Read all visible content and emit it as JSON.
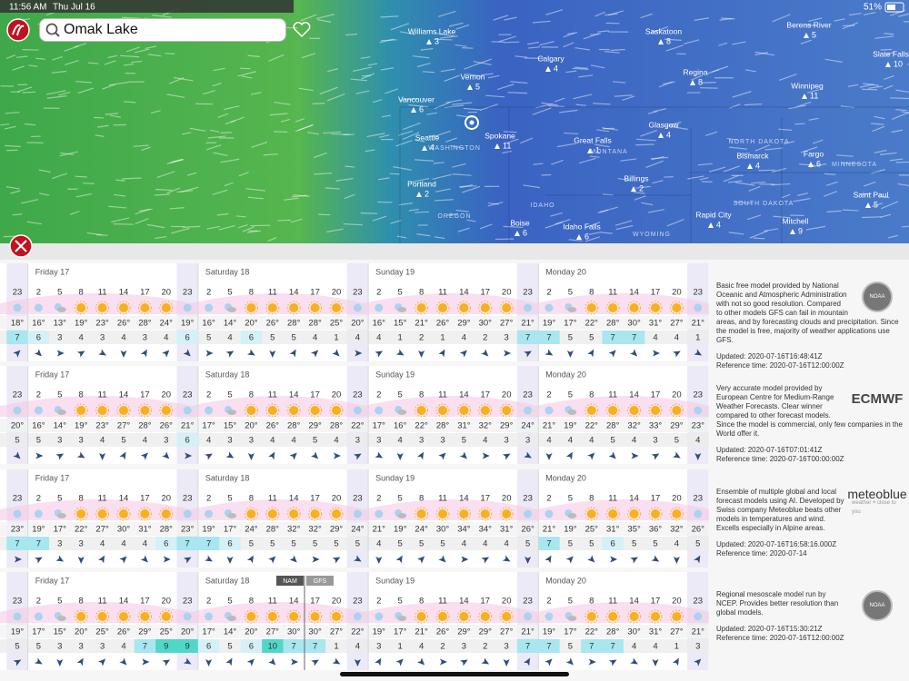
{
  "status": {
    "time": "11:56 AM",
    "date": "Thu Jul 16",
    "battery": "51%"
  },
  "search": {
    "query": "Omak Lake"
  },
  "map": {
    "cities": [
      {
        "name": "Williams Lake",
        "wind": 3
      },
      {
        "name": "Saskatoon",
        "wind": 8
      },
      {
        "name": "Berens River",
        "wind": 5
      },
      {
        "name": "Slate Falls",
        "wind": 10
      },
      {
        "name": "Calgary",
        "wind": 4
      },
      {
        "name": "Regina",
        "wind": 8
      },
      {
        "name": "Vernon",
        "wind": 5
      },
      {
        "name": "Winnipeg",
        "wind": 11
      },
      {
        "name": "Vancouver",
        "wind": 6
      },
      {
        "name": "Glasgow",
        "wind": 4
      },
      {
        "name": "Seattle",
        "wind": 4
      },
      {
        "name": "Spokane",
        "wind": 11
      },
      {
        "name": "Great Falls",
        "wind": 1
      },
      {
        "name": "Bismarck",
        "wind": 4
      },
      {
        "name": "Fargo",
        "wind": 6
      },
      {
        "name": "Billings",
        "wind": 2
      },
      {
        "name": "Portland",
        "wind": 2
      },
      {
        "name": "Saint Paul",
        "wind": 5
      },
      {
        "name": "Rapid City",
        "wind": 4
      },
      {
        "name": "Boise",
        "wind": 6
      },
      {
        "name": "Idaho Falls",
        "wind": 6
      },
      {
        "name": "Mitchell",
        "wind": 9
      }
    ],
    "regions": [
      "WASHINGTON",
      "OREGON",
      "IDAHO",
      "MONTANA",
      "WYOMING",
      "NORTH DAKOTA",
      "SOUTH DAKOTA",
      "MINNESOTA"
    ]
  },
  "forecast": {
    "days": [
      "Friday 17",
      "Saturday 18",
      "Sunday 19",
      "Monday 20"
    ],
    "hours": [
      23,
      2,
      5,
      8,
      11,
      14,
      17,
      20,
      23,
      2,
      5,
      8,
      11,
      14,
      17,
      20,
      23,
      2,
      5,
      8,
      11,
      14,
      17,
      20,
      23,
      2,
      5,
      8,
      11,
      14,
      17,
      20,
      23
    ],
    "model_switch": [
      "NAM",
      "GFS"
    ],
    "models": [
      {
        "logo": "NOAA",
        "description": "Basic free model provided by National Oceanic and Atmospheric Administration with not so good resolution. Compared to other models GFS can fail in mountain areas, and by forecasting clouds and precipitation. Since the model is free, majority of weather applications use GFS.",
        "updated": "Updated: 2020-07-16T16:48:41Z",
        "reference_time": "Reference time: 2020-07-16T12:00:00Z",
        "temps": [
          "18°",
          "16°",
          "13°",
          "19°",
          "23°",
          "26°",
          "28°",
          "24°",
          "19°",
          "16°",
          "14°",
          "20°",
          "26°",
          "28°",
          "28°",
          "25°",
          "20°",
          "16°",
          "15°",
          "21°",
          "26°",
          "29°",
          "30°",
          "27°",
          "21°",
          "19°",
          "17°",
          "22°",
          "28°",
          "30°",
          "31°",
          "27°",
          "21°"
        ],
        "wind": [
          7,
          6,
          3,
          4,
          3,
          4,
          3,
          4,
          6,
          5,
          4,
          6,
          5,
          5,
          4,
          1,
          4,
          4,
          1,
          2,
          1,
          4,
          2,
          3,
          7,
          7,
          5,
          5,
          7,
          7,
          4,
          4,
          1
        ]
      },
      {
        "logo": "ECMWF",
        "description": "Very accurate model provided by European Centre for Medium-Range Weather Forecasts. Clear winner compared to other forecast models. Since the model is commercial, only few companies in the World offer it.",
        "updated": "Updated: 2020-07-16T07:01:41Z",
        "reference_time": "Reference time: 2020-07-16T00:00:00Z",
        "temps": [
          "20°",
          "16°",
          "14°",
          "19°",
          "23°",
          "27°",
          "28°",
          "26°",
          "21°",
          "17°",
          "15°",
          "20°",
          "26°",
          "28°",
          "29°",
          "28°",
          "22°",
          "17°",
          "16°",
          "22°",
          "28°",
          "31°",
          "32°",
          "29°",
          "24°",
          "21°",
          "19°",
          "22°",
          "28°",
          "32°",
          "33°",
          "29°",
          "23°"
        ],
        "wind": [
          5,
          5,
          3,
          3,
          4,
          5,
          4,
          3,
          6,
          4,
          3,
          3,
          4,
          4,
          5,
          4,
          3,
          3,
          4,
          3,
          3,
          5,
          4,
          3,
          3,
          4,
          4,
          4,
          5,
          4,
          3,
          5,
          4
        ]
      },
      {
        "logo": "meteoblue",
        "logo_tagline": "weather ⌖ close to you",
        "description": "Ensemble of multiple global and local forecast models using AI. Developed by Swiss company Meteoblue beats other models in temperatures and wind. Excells especially in Alpine areas.",
        "updated": "Updated: 2020-07-16T16:58:16.000Z",
        "reference_time": "Reference time: 2020-07-14",
        "temps": [
          "23°",
          "19°",
          "17°",
          "22°",
          "27°",
          "30°",
          "31°",
          "28°",
          "23°",
          "19°",
          "17°",
          "24°",
          "28°",
          "32°",
          "32°",
          "29°",
          "24°",
          "21°",
          "19°",
          "24°",
          "30°",
          "34°",
          "34°",
          "31°",
          "26°",
          "21°",
          "19°",
          "25°",
          "31°",
          "35°",
          "36°",
          "32°",
          "26°"
        ],
        "wind": [
          7,
          7,
          3,
          3,
          4,
          4,
          4,
          6,
          7,
          7,
          6,
          5,
          5,
          5,
          5,
          5,
          5,
          4,
          5,
          5,
          5,
          4,
          4,
          4,
          5,
          7,
          5,
          5,
          6,
          5,
          5,
          4,
          5
        ]
      },
      {
        "logo": "NOAA",
        "description": "Regional mesoscale model run by NCEP. Provides better resolution than global models.",
        "updated": "Updated: 2020-07-16T15:30:21Z",
        "reference_time": "Reference time: 2020-07-16T12:00:00Z",
        "temps": [
          "19°",
          "17°",
          "15°",
          "20°",
          "25°",
          "26°",
          "29°",
          "25°",
          "20°",
          "17°",
          "14°",
          "20°",
          "27°",
          "30°",
          "30°",
          "27°",
          "22°",
          "19°",
          "17°",
          "21°",
          "26°",
          "29°",
          "29°",
          "27°",
          "21°",
          "19°",
          "17°",
          "22°",
          "28°",
          "30°",
          "31°",
          "27°",
          "21°"
        ],
        "wind": [
          5,
          5,
          3,
          3,
          3,
          4,
          7,
          9,
          9,
          6,
          5,
          6,
          10,
          7,
          7,
          1,
          4,
          3,
          1,
          4,
          2,
          3,
          2,
          3,
          7,
          7,
          5,
          7,
          7,
          4,
          4,
          1,
          3
        ]
      }
    ]
  }
}
